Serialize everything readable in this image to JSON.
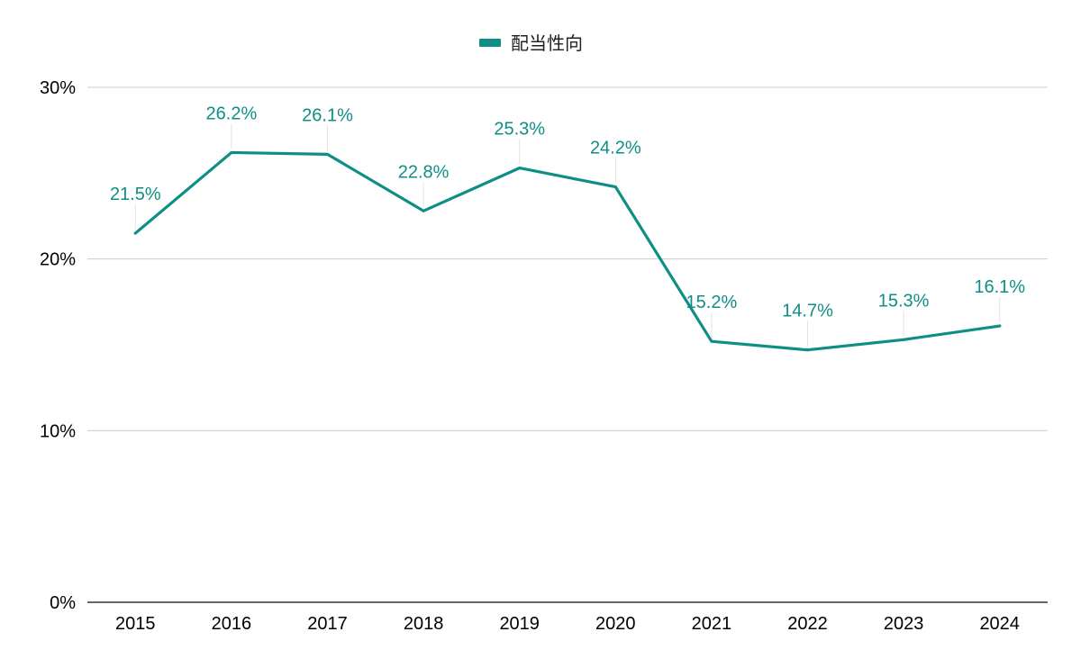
{
  "chart_data": {
    "type": "line",
    "categories": [
      "2015",
      "2016",
      "2017",
      "2018",
      "2019",
      "2020",
      "2021",
      "2022",
      "2023",
      "2024"
    ],
    "series": [
      {
        "name": "配当性向",
        "values": [
          21.5,
          26.2,
          26.1,
          22.8,
          25.3,
          24.2,
          15.2,
          14.7,
          15.3,
          16.1
        ],
        "labels": [
          "21.5%",
          "26.2%",
          "26.1%",
          "22.8%",
          "25.3%",
          "24.2%",
          "15.2%",
          "14.7%",
          "15.3%",
          "16.1%"
        ]
      }
    ],
    "ylim": [
      0,
      30
    ],
    "yticks": [
      0,
      10,
      20,
      30
    ],
    "ytick_labels": [
      "0%",
      "10%",
      "20%",
      "30%"
    ],
    "grid": true,
    "legend_position": "top-center",
    "colors": {
      "series": "#0E8F86",
      "grid": "#cccccc",
      "axis": "#333333",
      "leader": "#e3e3e3"
    }
  }
}
